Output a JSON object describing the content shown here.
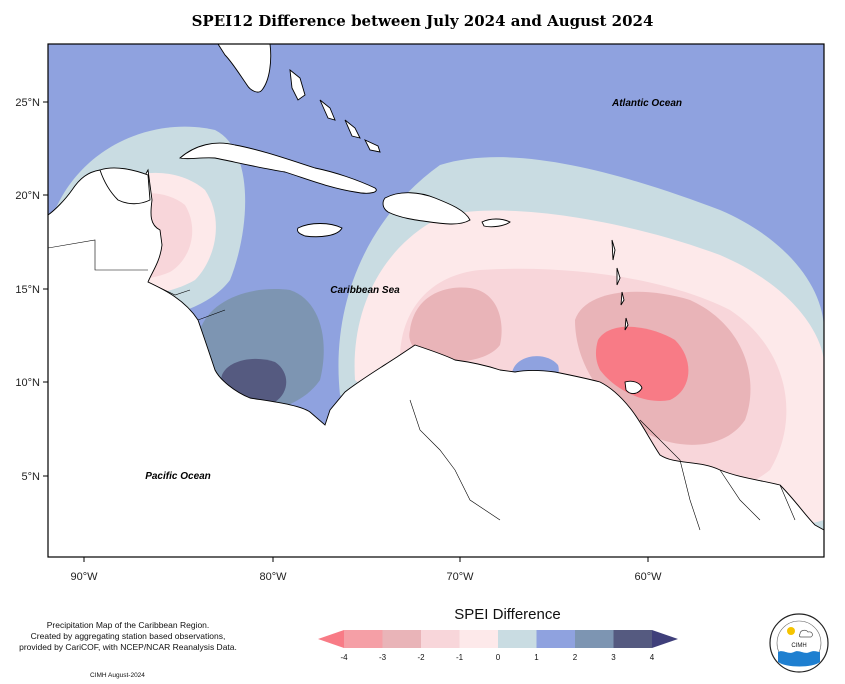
{
  "title": "SPEI12 Difference between July 2024 and August 2024",
  "map": {
    "lat_labels": [
      "25°N",
      "20°N",
      "15°N",
      "10°N",
      "5°N"
    ],
    "lon_labels": [
      "90°W",
      "80°W",
      "70°W",
      "60°W"
    ],
    "places": {
      "atlantic": "Atlantic Ocean",
      "caribbean": "Caribbean Sea",
      "pacific": "Pacific Ocean"
    }
  },
  "legend": {
    "title": "SPEI Difference",
    "ticks": [
      "-4",
      "-3",
      "-2",
      "-1",
      "0",
      "1",
      "2",
      "3",
      "4"
    ],
    "colors": [
      "#f87b86",
      "#f59fa6",
      "#e9b4b8",
      "#f8d6da",
      "#fde9ea",
      "#c9dce2",
      "#8fa2df",
      "#7d95b2",
      "#555a80",
      "#3f3f7a"
    ]
  },
  "credit": {
    "line1": "Precipitation Map of the Caribbean Region.",
    "line2": "Created by aggregating station based observations,",
    "line3": "provided by CariCOF, with NCEP/NCAR Reanalysis Data.",
    "date": "CIMH August-2024"
  },
  "logo": {
    "text": "CIMH"
  }
}
